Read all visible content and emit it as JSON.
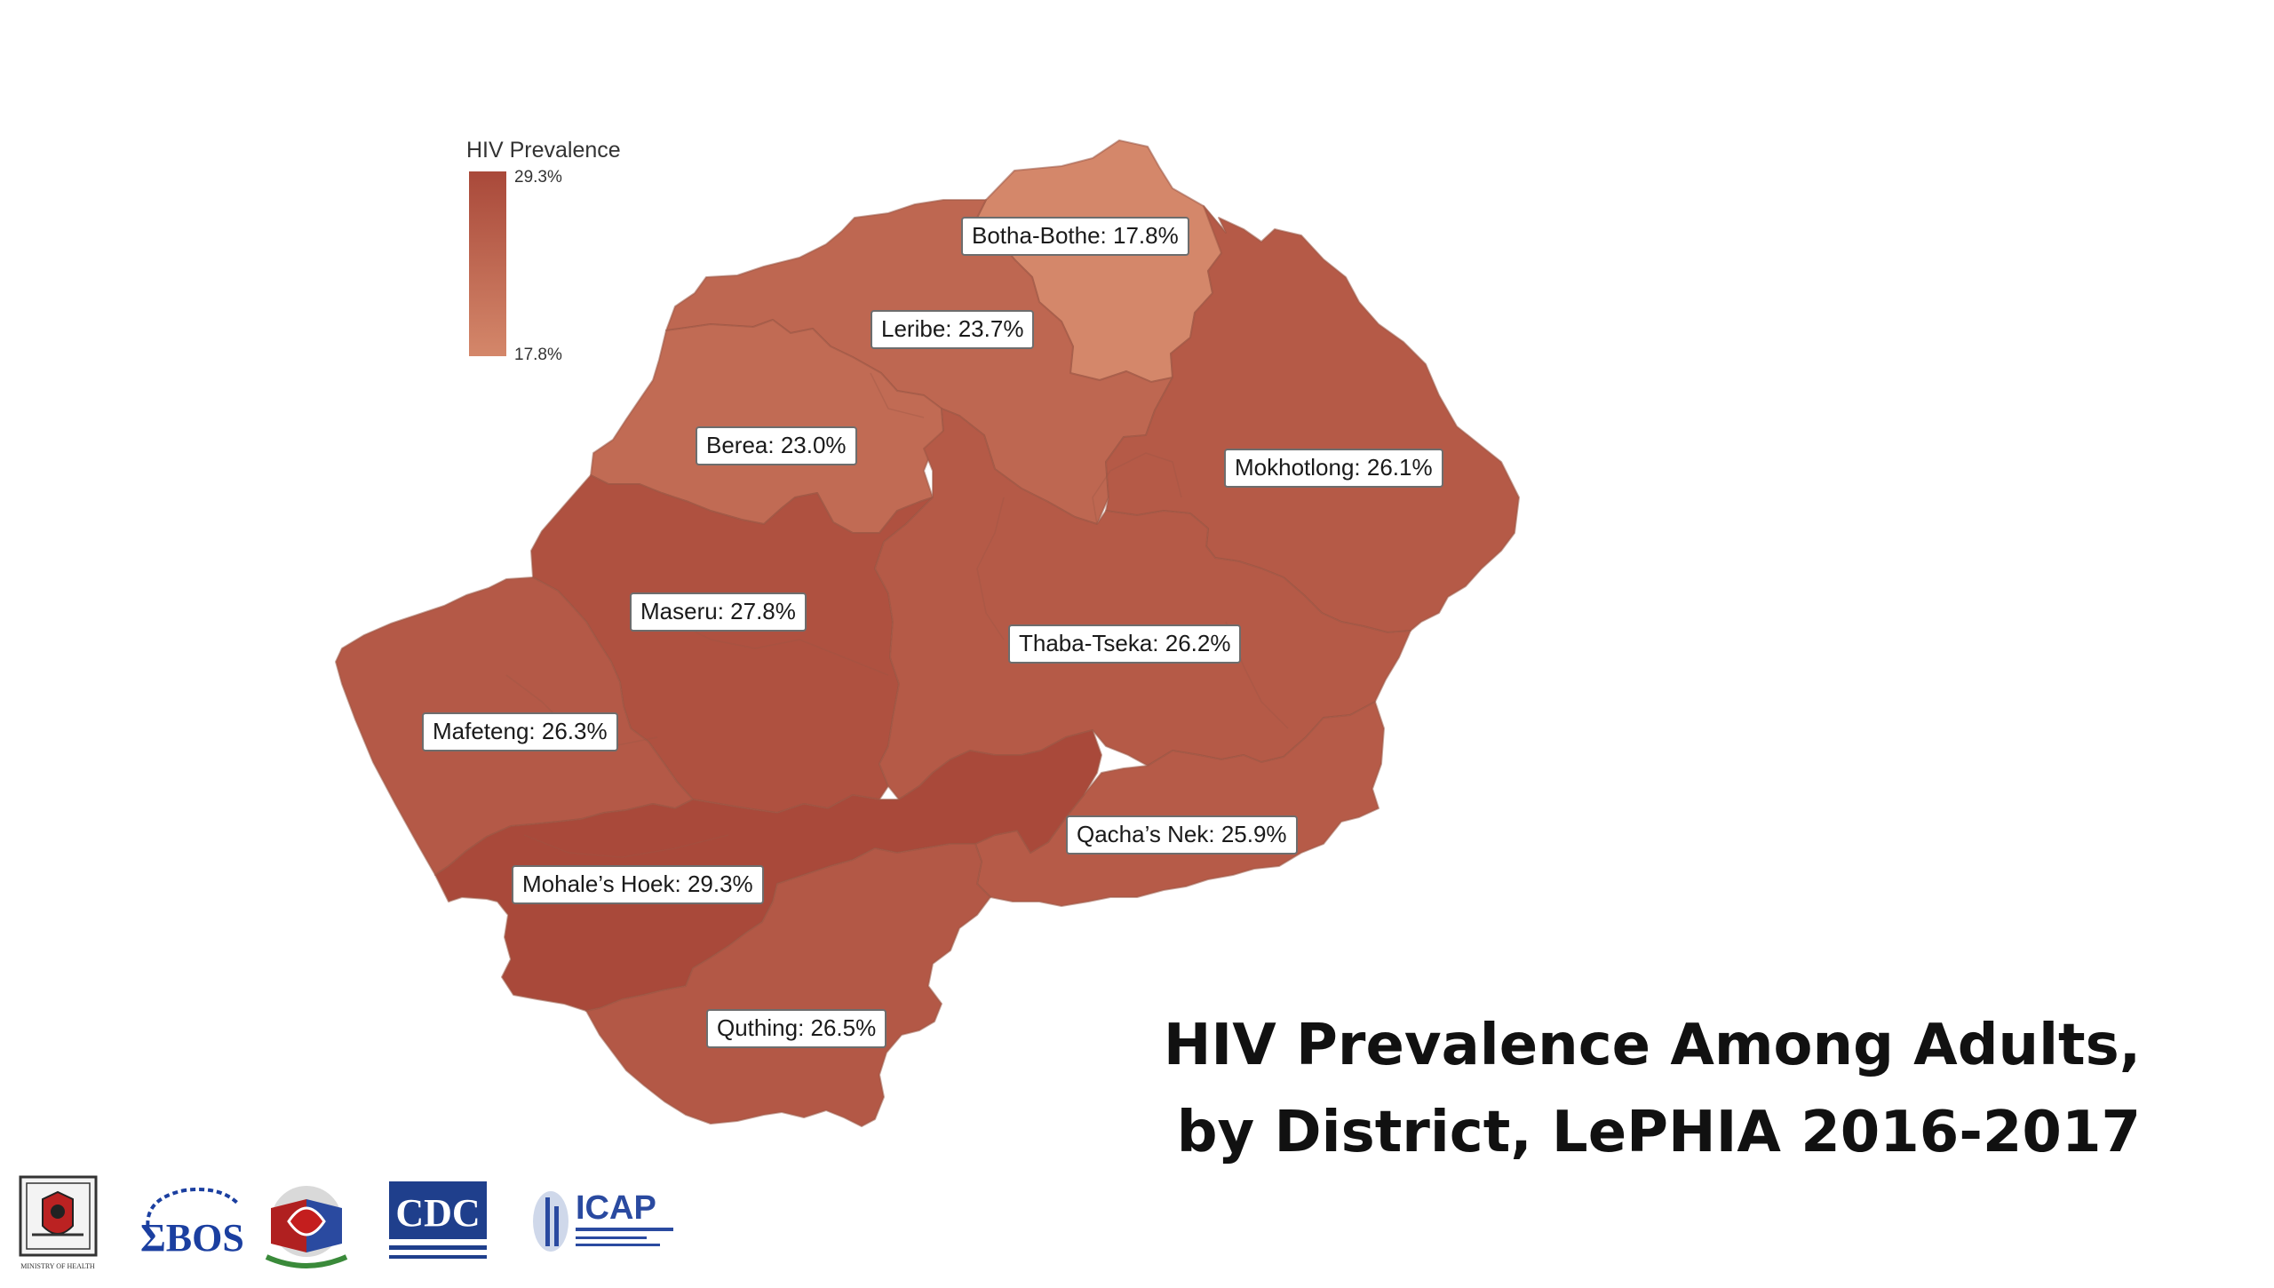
{
  "title": {
    "line1": "HIV Prevalence Among Adults,",
    "line2": "by District, LePHIA 2016-2017"
  },
  "legend": {
    "title": "HIV Prevalence",
    "max_label": "29.3%",
    "min_label": "17.8%",
    "colors": {
      "max": "#a9493a",
      "min": "#d4876a"
    },
    "range": [
      17.8,
      29.3
    ]
  },
  "districts": [
    {
      "id": "botha-bothe",
      "label": "Botha-Bothe: 17.8%",
      "value": 17.8
    },
    {
      "id": "leribe",
      "label": "Leribe: 23.7%",
      "value": 23.7
    },
    {
      "id": "berea",
      "label": "Berea: 23.0%",
      "value": 23.0
    },
    {
      "id": "mokhotlong",
      "label": "Mokhotlong: 26.1%",
      "value": 26.1
    },
    {
      "id": "maseru",
      "label": "Maseru: 27.8%",
      "value": 27.8
    },
    {
      "id": "thaba-tseka",
      "label": "Thaba-Tseka: 26.2%",
      "value": 26.2
    },
    {
      "id": "mafeteng",
      "label": "Mafeteng: 26.3%",
      "value": 26.3
    },
    {
      "id": "qachas-nek",
      "label": "Qacha’s Nek: 25.9%",
      "value": 25.9
    },
    {
      "id": "mohales-hoek",
      "label": "Mohale’s Hoek: 29.3%",
      "value": 29.3
    },
    {
      "id": "quthing",
      "label": "Quthing: 26.5%",
      "value": 26.5
    }
  ],
  "logos": [
    {
      "name": "ministry-of-health-logo",
      "text": "MINISTRY OF HEALTH"
    },
    {
      "name": "bos-logo",
      "text": "ΣBOS"
    },
    {
      "name": "pepfar-logo",
      "text": ""
    },
    {
      "name": "cdc-logo",
      "text": "CDC"
    },
    {
      "name": "icap-logo",
      "text": "ICAP"
    }
  ]
}
